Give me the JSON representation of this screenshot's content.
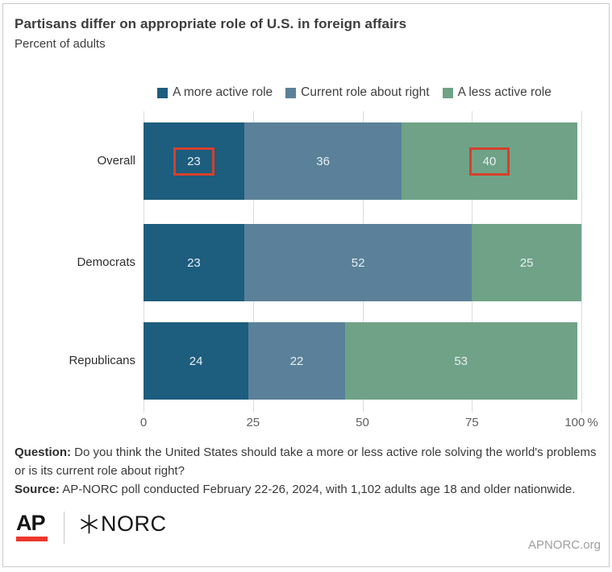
{
  "header": {
    "title": "Partisans differ on appropriate role of U.S. in foreign affairs",
    "subtitle": "Percent of adults"
  },
  "chart_data": {
    "type": "bar",
    "orientation": "horizontal",
    "stacked": true,
    "title": "Partisans differ on appropriate role of U.S. in foreign affairs",
    "subtitle": "Percent of adults",
    "categories": [
      "Overall",
      "Democrats",
      "Republicans"
    ],
    "series": [
      {
        "name": "A more active role",
        "color": "#1d5d7e",
        "values": [
          23,
          23,
          24
        ]
      },
      {
        "name": "Current role about right",
        "color": "#5a8199",
        "values": [
          36,
          52,
          22
        ]
      },
      {
        "name": "A less active role",
        "color": "#6fa287",
        "values": [
          40,
          25,
          53
        ]
      }
    ],
    "highlights": [
      {
        "category": "Overall",
        "series_index": 0
      },
      {
        "category": "Overall",
        "series_index": 2
      }
    ],
    "highlight_color": "#d6402b",
    "x_ticks": [
      "0",
      "25",
      "50",
      "75",
      "100 %"
    ],
    "x_tick_values": [
      0,
      25,
      50,
      75,
      100
    ],
    "xlim": [
      0,
      100
    ],
    "grid": true,
    "gridline_color": "#dcdcdc",
    "legend_position": "top",
    "value_labels": "inside-center"
  },
  "footer": {
    "question_label": "Question:",
    "question_text": " Do you think the United States should take a more or less active role solving the world's problems or is its current role about right?",
    "source_label": "Source:",
    "source_text": " AP-NORC poll conducted February 22-26, 2024, with 1,102 adults age 18 and older nationwide.",
    "logo_ap": "AP",
    "logo_ap_color": "#ee372c",
    "logo_norc": "NORC",
    "site": "APNORC.org"
  }
}
